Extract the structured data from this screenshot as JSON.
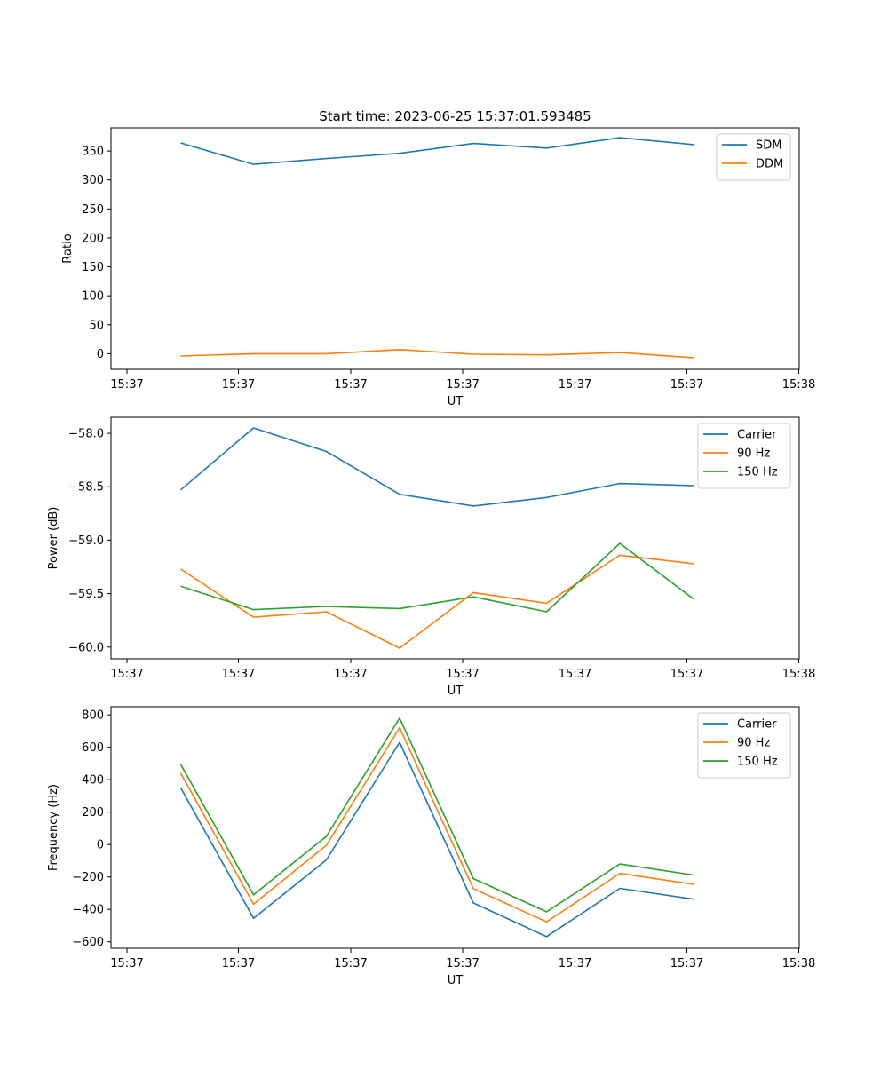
{
  "figure": {
    "title": "Start time: 2023-06-25 15:37:01.593485"
  },
  "chart_data": [
    {
      "type": "line",
      "title": "Start time: 2023-06-25 15:37:01.593485",
      "xlabel": "UT",
      "ylabel": "Ratio",
      "x_tick_labels": [
        "15:37",
        "15:37",
        "15:37",
        "15:37",
        "15:37",
        "15:37",
        "15:38"
      ],
      "y_ticks": [
        0,
        50,
        100,
        150,
        200,
        250,
        300,
        350
      ],
      "ylim": [
        -27,
        390
      ],
      "legend": "top-right",
      "grid": false,
      "series": [
        {
          "name": "SDM",
          "color": "#1f77b4",
          "values": [
            364,
            327,
            337,
            346,
            363,
            355,
            373,
            361
          ]
        },
        {
          "name": "DDM",
          "color": "#ff7f0e",
          "values": [
            -4,
            0,
            0,
            7,
            -1,
            -2,
            2,
            -7
          ]
        }
      ]
    },
    {
      "type": "line",
      "xlabel": "UT",
      "ylabel": "Power (dB)",
      "x_tick_labels": [
        "15:37",
        "15:37",
        "15:37",
        "15:37",
        "15:37",
        "15:37",
        "15:38"
      ],
      "y_ticks": [
        -60.0,
        -59.5,
        -59.0,
        -58.5,
        -58.0
      ],
      "y_tick_labels": [
        "−60.0",
        "−59.5",
        "−59.0",
        "−58.5",
        "−58.0"
      ],
      "ylim": [
        -60.11,
        -57.85
      ],
      "legend": "top-right",
      "grid": false,
      "series": [
        {
          "name": "Carrier",
          "color": "#1f77b4",
          "values": [
            -58.53,
            -57.95,
            -58.17,
            -58.57,
            -58.68,
            -58.6,
            -58.47,
            -58.49
          ]
        },
        {
          "name": "90 Hz",
          "color": "#ff7f0e",
          "values": [
            -59.27,
            -59.72,
            -59.67,
            -60.01,
            -59.49,
            -59.59,
            -59.14,
            -59.22
          ]
        },
        {
          "name": "150 Hz",
          "color": "#2ca02c",
          "values": [
            -59.43,
            -59.65,
            -59.62,
            -59.64,
            -59.53,
            -59.67,
            -59.03,
            -59.55
          ]
        }
      ]
    },
    {
      "type": "line",
      "xlabel": "UT",
      "ylabel": "Frequency (Hz)",
      "x_tick_labels": [
        "15:37",
        "15:37",
        "15:37",
        "15:37",
        "15:37",
        "15:37",
        "15:38"
      ],
      "y_ticks": [
        -600,
        -400,
        -200,
        0,
        200,
        400,
        600,
        800
      ],
      "y_tick_labels": [
        "−600",
        "−400",
        "−200",
        "0",
        "200",
        "400",
        "600",
        "800"
      ],
      "ylim": [
        -640,
        850
      ],
      "legend": "top-right",
      "grid": false,
      "series": [
        {
          "name": "Carrier",
          "color": "#1f77b4",
          "values": [
            350,
            -455,
            -95,
            630,
            -360,
            -568,
            -270,
            -337
          ]
        },
        {
          "name": "90 Hz",
          "color": "#ff7f0e",
          "values": [
            440,
            -368,
            -5,
            720,
            -272,
            -477,
            -178,
            -245
          ]
        },
        {
          "name": "150 Hz",
          "color": "#2ca02c",
          "values": [
            495,
            -310,
            50,
            780,
            -210,
            -415,
            -120,
            -188
          ]
        }
      ]
    }
  ]
}
